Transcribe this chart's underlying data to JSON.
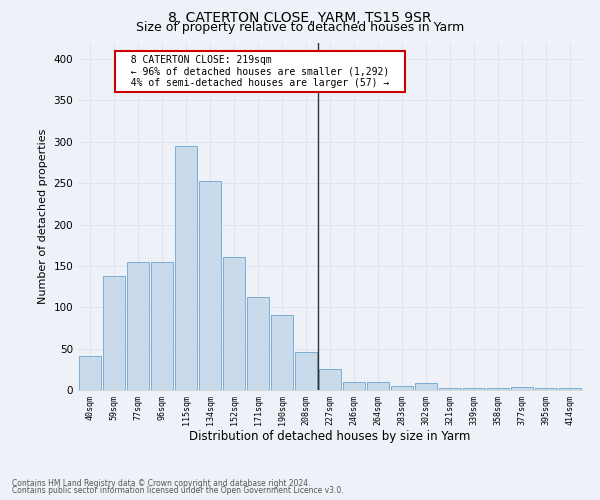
{
  "title": "8, CATERTON CLOSE, YARM, TS15 9SR",
  "subtitle": "Size of property relative to detached houses in Yarm",
  "xlabel": "Distribution of detached houses by size in Yarm",
  "ylabel": "Number of detached properties",
  "footnote1": "Contains HM Land Registry data © Crown copyright and database right 2024.",
  "footnote2": "Contains public sector information licensed under the Open Government Licence v3.0.",
  "annotation_line1": "8 CATERTON CLOSE: 219sqm",
  "annotation_line2": "← 96% of detached houses are smaller (1,292)",
  "annotation_line3": "4% of semi-detached houses are larger (57) →",
  "bar_labels": [
    "40sqm",
    "59sqm",
    "77sqm",
    "96sqm",
    "115sqm",
    "134sqm",
    "152sqm",
    "171sqm",
    "190sqm",
    "208sqm",
    "227sqm",
    "246sqm",
    "264sqm",
    "283sqm",
    "302sqm",
    "321sqm",
    "339sqm",
    "358sqm",
    "377sqm",
    "395sqm",
    "414sqm"
  ],
  "bar_values": [
    41,
    138,
    155,
    155,
    295,
    252,
    161,
    112,
    91,
    46,
    25,
    10,
    10,
    5,
    9,
    3,
    3,
    2,
    4,
    2,
    3
  ],
  "bar_color": "#c9daea",
  "bar_edge_color": "#7badd4",
  "marker_bin_index": 10,
  "marker_color": "#333333",
  "ylim": [
    0,
    420
  ],
  "yticks": [
    0,
    50,
    100,
    150,
    200,
    250,
    300,
    350,
    400
  ],
  "grid_color": "#dde6f0",
  "bg_color": "#eef2f8",
  "title_fontsize": 10,
  "subtitle_fontsize": 9,
  "annotation_box_color": "#cc0000",
  "annotation_bg": "#ffffff",
  "footnote_fontsize": 5.5,
  "ylabel_fontsize": 8,
  "xlabel_fontsize": 8.5
}
